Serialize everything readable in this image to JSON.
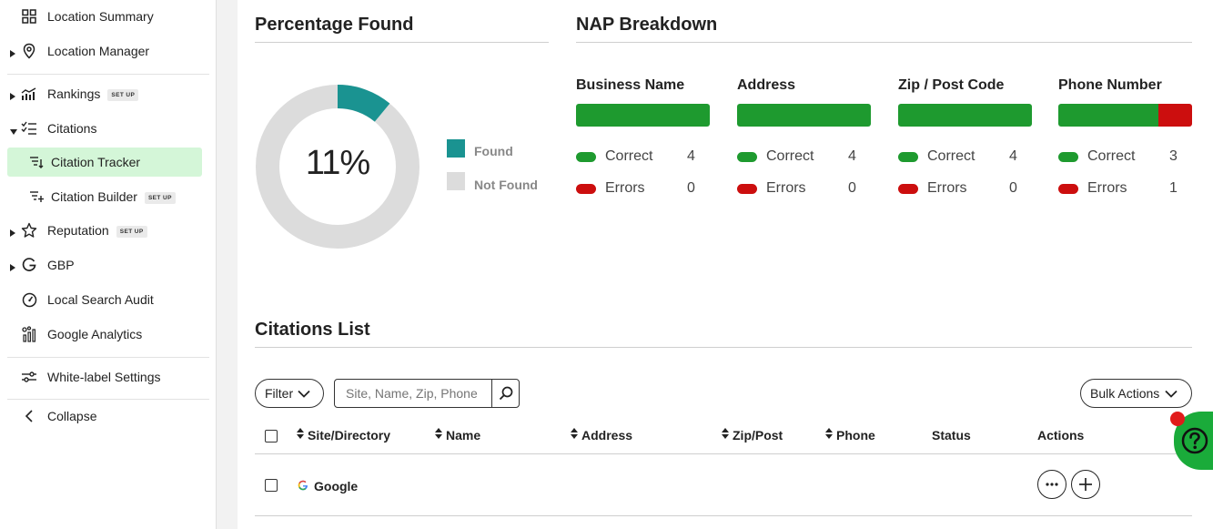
{
  "sidebar": {
    "items": [
      {
        "label": "Location Summary"
      },
      {
        "label": "Location Manager"
      },
      {
        "label": "Rankings",
        "badge": "SET UP"
      },
      {
        "label": "Citations"
      },
      {
        "label": "Citation Tracker"
      },
      {
        "label": "Citation Builder",
        "badge": "SET UP"
      },
      {
        "label": "Reputation",
        "badge": "SET UP"
      },
      {
        "label": "GBP"
      },
      {
        "label": "Local Search Audit"
      },
      {
        "label": "Google Analytics"
      },
      {
        "label": "White-label Settings"
      },
      {
        "label": "Collapse"
      }
    ]
  },
  "percentage": {
    "title": "Percentage Found",
    "value_label": "11%",
    "found_fraction": 0.11,
    "legend": [
      {
        "label": "Found",
        "color": "#1a9391"
      },
      {
        "label": "Not Found",
        "color": "#dcdcdc"
      }
    ]
  },
  "nap": {
    "title": "NAP Breakdown",
    "correct_label": "Correct",
    "errors_label": "Errors",
    "correct_color": "#1e9a2f",
    "error_color": "#cc0e0e",
    "columns": [
      {
        "name": "Business Name",
        "correct": "4",
        "errors": "0"
      },
      {
        "name": "Address",
        "correct": "4",
        "errors": "0"
      },
      {
        "name": "Zip / Post Code",
        "correct": "4",
        "errors": "0"
      },
      {
        "name": "Phone Number",
        "correct": "3",
        "errors": "1"
      }
    ]
  },
  "citations": {
    "title": "Citations List",
    "filter_label": "Filter",
    "search_placeholder": "Site, Name, Zip, Phone",
    "bulk_label": "Bulk Actions",
    "columns": [
      "Site/Directory",
      "Name",
      "Address",
      "Zip/Post",
      "Phone",
      "Status",
      "Actions"
    ],
    "rows": [
      {
        "site": "Google"
      }
    ]
  }
}
